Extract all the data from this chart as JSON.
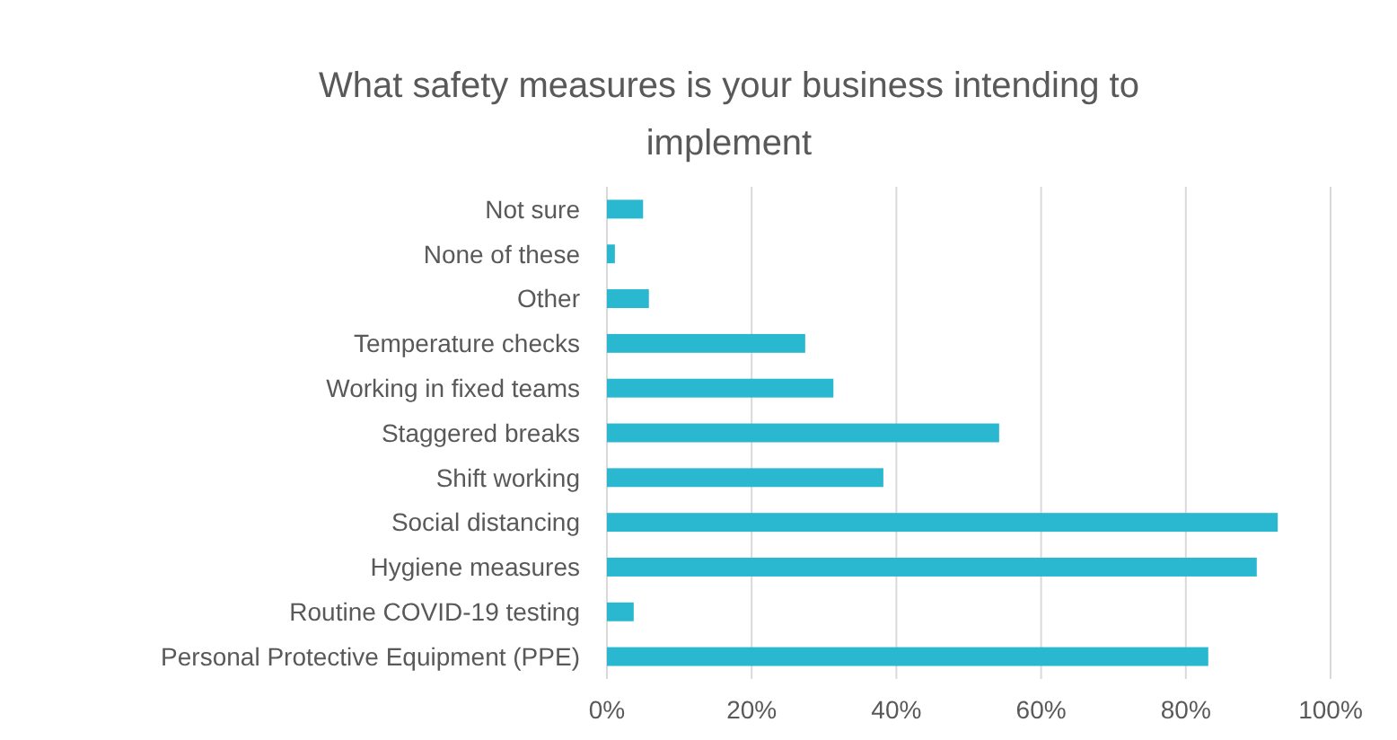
{
  "chart_data": {
    "type": "bar",
    "orientation": "horizontal",
    "title": "What safety measures is your business intending to implement",
    "categories": [
      "Not sure",
      "None of these",
      "Other",
      "Temperature checks",
      "Working in fixed teams",
      "Staggered breaks",
      "Shift working",
      "Social distancing",
      "Hygiene measures",
      "Routine COVID-19 testing",
      "Personal Protective Equipment (PPE)"
    ],
    "values": [
      5.0,
      1.1,
      5.8,
      27.4,
      31.3,
      54.2,
      38.2,
      92.7,
      89.8,
      3.7,
      83.1
    ],
    "color": "#29b8cf",
    "xlim": [
      0,
      100
    ],
    "xticks": [
      {
        "value": 0,
        "label": "0%"
      },
      {
        "value": 20,
        "label": "20%"
      },
      {
        "value": 40,
        "label": "40%"
      },
      {
        "value": 60,
        "label": "60%"
      },
      {
        "value": 80,
        "label": "80%"
      },
      {
        "value": 100,
        "label": "100%"
      }
    ],
    "grid": "x"
  }
}
